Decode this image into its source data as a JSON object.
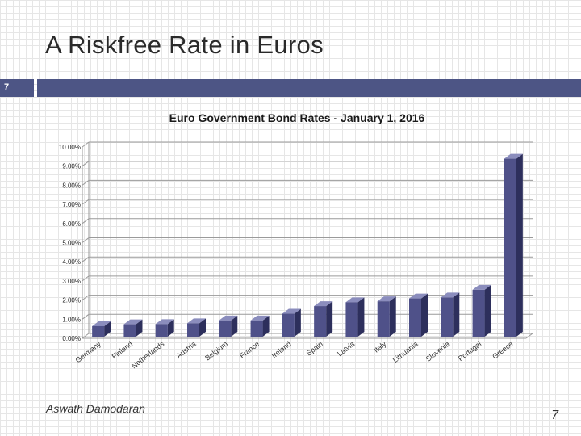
{
  "slide": {
    "title": "A Riskfree Rate in Euros",
    "number_badge": "7",
    "author": "Aswath Damodaran",
    "page_number": "7"
  },
  "colors": {
    "bar_front": "#4f5189",
    "bar_top": "#8b8dbd",
    "bar_side": "#2d2f5c",
    "header_bar": "#4d5585"
  },
  "chart_data": {
    "type": "bar",
    "title": "Euro Government Bond Rates - January 1, 2016",
    "xlabel": "",
    "ylabel": "",
    "ylim": [
      0,
      10
    ],
    "yticks": [
      "0.00%",
      "1.00%",
      "2.00%",
      "3.00%",
      "4.00%",
      "5.00%",
      "6.00%",
      "7.00%",
      "8.00%",
      "9.00%",
      "10.00%"
    ],
    "categories": [
      "Germany",
      "Finland",
      "Netherlands",
      "Austria",
      "Belgium",
      "France",
      "Ireland",
      "Spain",
      "Latvia",
      "Italy",
      "Lithuania",
      "Slovenia",
      "Portugal",
      "Greece"
    ],
    "values": [
      0.55,
      0.65,
      0.66,
      0.7,
      0.85,
      0.85,
      1.2,
      1.6,
      1.8,
      1.85,
      2.0,
      2.05,
      2.45,
      9.3
    ],
    "grid": true,
    "legend": false,
    "style": "3d-columns"
  }
}
